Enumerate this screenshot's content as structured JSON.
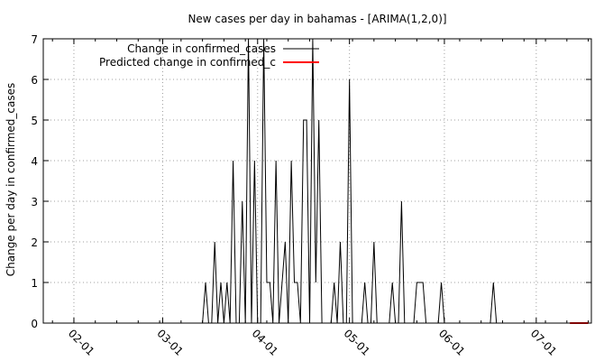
{
  "chart_data": {
    "type": "line",
    "title": "New cases per day in bahamas -  [ARIMA(1,2,0)]",
    "xlabel": "",
    "ylabel": "Change per day in confirmed_cases",
    "x_ticks": [
      "02-01",
      "03-01",
      "04-01",
      "05-01",
      "06-01",
      "07-01"
    ],
    "xlim": [
      "2020-01-22",
      "2020-07-19"
    ],
    "ylim": [
      0,
      7
    ],
    "y_ticks": [
      0,
      1,
      2,
      3,
      4,
      5,
      6,
      7
    ],
    "grid": true,
    "legend_position": "top-left",
    "series": [
      {
        "name": "Change in confirmed_cases",
        "color": "#000000",
        "x": [
          "2020-03-14",
          "2020-03-15",
          "2020-03-16",
          "2020-03-17",
          "2020-03-18",
          "2020-03-19",
          "2020-03-20",
          "2020-03-21",
          "2020-03-22",
          "2020-03-23",
          "2020-03-24",
          "2020-03-25",
          "2020-03-26",
          "2020-03-27",
          "2020-03-28",
          "2020-03-29",
          "2020-03-30",
          "2020-03-31",
          "2020-04-01",
          "2020-04-02",
          "2020-04-03",
          "2020-04-04",
          "2020-04-05",
          "2020-04-06",
          "2020-04-07",
          "2020-04-08",
          "2020-04-09",
          "2020-04-10",
          "2020-04-11",
          "2020-04-12",
          "2020-04-13",
          "2020-04-14",
          "2020-04-15",
          "2020-04-16",
          "2020-04-17",
          "2020-04-18",
          "2020-04-19",
          "2020-04-20",
          "2020-04-21",
          "2020-04-22",
          "2020-04-23",
          "2020-04-24",
          "2020-04-25",
          "2020-04-26",
          "2020-04-27",
          "2020-04-28",
          "2020-04-29",
          "2020-04-30",
          "2020-05-01",
          "2020-05-02",
          "2020-05-03",
          "2020-05-04",
          "2020-05-05",
          "2020-05-06",
          "2020-05-07",
          "2020-05-08",
          "2020-05-09",
          "2020-05-10",
          "2020-05-11",
          "2020-05-12",
          "2020-05-13",
          "2020-05-14",
          "2020-05-15",
          "2020-05-16",
          "2020-05-17",
          "2020-05-18",
          "2020-05-19",
          "2020-05-20",
          "2020-05-21",
          "2020-05-22",
          "2020-05-23",
          "2020-05-24",
          "2020-05-25",
          "2020-05-26",
          "2020-05-27",
          "2020-05-28",
          "2020-05-29",
          "2020-05-30",
          "2020-05-31",
          "2020-06-01",
          "2020-06-02",
          "2020-06-03",
          "2020-06-04",
          "2020-06-05",
          "2020-06-06",
          "2020-06-07",
          "2020-06-08",
          "2020-06-09",
          "2020-06-10",
          "2020-06-11",
          "2020-06-12",
          "2020-06-13",
          "2020-06-14",
          "2020-06-15",
          "2020-06-16",
          "2020-06-17",
          "2020-06-18",
          "2020-06-19",
          "2020-06-20",
          "2020-06-21",
          "2020-06-22",
          "2020-06-23",
          "2020-06-24",
          "2020-06-25",
          "2020-06-26",
          "2020-06-27",
          "2020-06-28",
          "2020-06-29",
          "2020-06-30",
          "2020-07-01",
          "2020-07-02",
          "2020-07-03",
          "2020-07-04",
          "2020-07-05",
          "2020-07-06",
          "2020-07-07",
          "2020-07-08",
          "2020-07-09",
          "2020-07-10",
          "2020-07-11"
        ],
        "y": [
          0,
          1,
          0,
          0,
          2,
          0,
          1,
          0,
          1,
          0,
          4,
          0,
          0,
          3,
          0,
          7,
          0,
          4,
          0,
          0,
          7,
          1,
          1,
          0,
          4,
          0,
          1,
          2,
          0,
          4,
          1,
          1,
          0,
          5,
          5,
          0,
          7,
          1,
          5,
          0,
          0,
          0,
          0,
          1,
          0,
          2,
          0,
          0,
          6,
          0,
          0,
          0,
          0,
          1,
          0,
          0,
          2,
          0,
          0,
          0,
          0,
          0,
          1,
          0,
          0,
          3,
          0,
          0,
          0,
          0,
          1,
          1,
          1,
          0,
          0,
          0,
          0,
          0,
          1,
          0,
          0,
          0,
          0,
          0,
          0,
          0,
          0,
          0,
          0,
          0,
          0,
          0,
          0,
          0,
          0,
          1,
          0,
          0,
          0,
          0,
          0,
          0,
          0,
          0,
          0,
          0,
          0,
          0,
          0,
          0,
          0,
          0,
          0,
          0,
          0,
          0,
          0,
          0,
          0,
          0
        ]
      },
      {
        "name": "Predicted change in confirmed_c",
        "color": "#ff0000",
        "x": [
          "2020-07-12",
          "2020-07-13",
          "2020-07-14",
          "2020-07-15",
          "2020-07-16",
          "2020-07-17",
          "2020-07-18"
        ],
        "y": [
          0,
          0,
          0,
          0,
          0,
          0,
          0
        ]
      }
    ]
  }
}
